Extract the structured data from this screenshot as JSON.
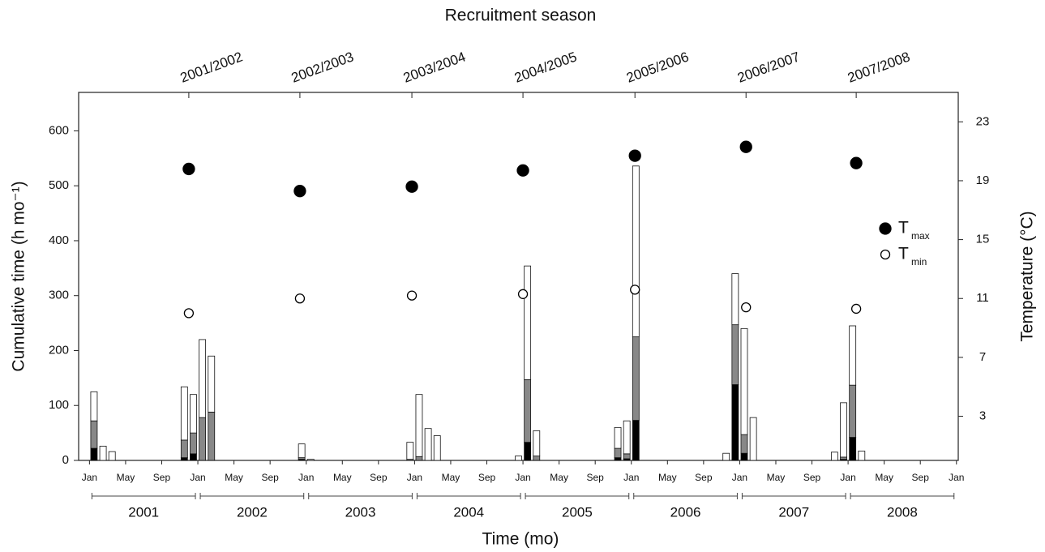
{
  "chart_data": {
    "type": "bar",
    "x2label": "Recruitment season",
    "xlabel": "Time (mo)",
    "ylabel": "Cumulative time (h mo⁻¹)",
    "y2label": "Temperature (°C)",
    "xlim": [
      -1.2,
      96.2
    ],
    "ylim": [
      0,
      670
    ],
    "y2lim": [
      0,
      25
    ],
    "yticks": [
      0,
      100,
      200,
      300,
      400,
      500,
      600
    ],
    "y2ticks": [
      3,
      7,
      11,
      15,
      19,
      23
    ],
    "xticks": [
      {
        "value": 0,
        "label": "Jan"
      },
      {
        "value": 4,
        "label": "May"
      },
      {
        "value": 8,
        "label": "Sep"
      },
      {
        "value": 12,
        "label": "Jan"
      },
      {
        "value": 16,
        "label": "May"
      },
      {
        "value": 20,
        "label": "Sep"
      },
      {
        "value": 24,
        "label": "Jan"
      },
      {
        "value": 28,
        "label": "May"
      },
      {
        "value": 32,
        "label": "Sep"
      },
      {
        "value": 36,
        "label": "Jan"
      },
      {
        "value": 40,
        "label": "May"
      },
      {
        "value": 44,
        "label": "Sep"
      },
      {
        "value": 48,
        "label": "Jan"
      },
      {
        "value": 52,
        "label": "May"
      },
      {
        "value": 56,
        "label": "Sep"
      },
      {
        "value": 60,
        "label": "Jan"
      },
      {
        "value": 64,
        "label": "May"
      },
      {
        "value": 68,
        "label": "Sep"
      },
      {
        "value": 72,
        "label": "Jan"
      },
      {
        "value": 76,
        "label": "May"
      },
      {
        "value": 80,
        "label": "Sep"
      },
      {
        "value": 84,
        "label": "Jan"
      },
      {
        "value": 88,
        "label": "May"
      },
      {
        "value": 92,
        "label": "Sep"
      },
      {
        "value": 96,
        "label": "Jan"
      }
    ],
    "year_labels": [
      "2001",
      "2002",
      "2003",
      "2004",
      "2005",
      "2006",
      "2007",
      "2008"
    ],
    "x2ticks": [
      {
        "value": 11,
        "label": "2001/2002"
      },
      {
        "value": 23.3,
        "label": "2002/2003"
      },
      {
        "value": 35.7,
        "label": "2003/2004"
      },
      {
        "value": 48,
        "label": "2004/2005"
      },
      {
        "value": 60.4,
        "label": "2005/2006"
      },
      {
        "value": 72.7,
        "label": "2006/2007"
      },
      {
        "value": 84.9,
        "label": "2007/2008"
      }
    ],
    "bars": {
      "x": [
        0.5,
        1.5,
        2.5,
        10.5,
        11.5,
        12.5,
        13.5,
        23.5,
        24.5,
        35.5,
        36.5,
        37.5,
        38.5,
        47.5,
        48.5,
        49.5,
        58.5,
        59.5,
        60.5,
        70.5,
        71.5,
        72.5,
        73.5,
        82.5,
        83.5,
        84.5,
        85.5
      ],
      "series": [
        {
          "color": "#000000",
          "values": [
            22,
            0,
            0,
            5,
            12,
            0,
            0,
            2,
            0,
            0,
            0,
            0,
            0,
            0,
            33,
            0,
            5,
            3,
            73,
            0,
            138,
            13,
            0,
            0,
            2,
            42,
            0
          ]
        },
        {
          "color": "#888888",
          "values": [
            50,
            0,
            0,
            32,
            38,
            78,
            88,
            3,
            0,
            2,
            7,
            0,
            0,
            0,
            114,
            8,
            17,
            9,
            152,
            0,
            109,
            34,
            0,
            0,
            4,
            95,
            0
          ]
        },
        {
          "color": "#ffffff",
          "values": [
            53,
            26,
            16,
            97,
            70,
            142,
            102,
            25,
            2,
            31,
            113,
            58,
            45,
            8,
            207,
            46,
            38,
            60,
            311,
            13,
            93,
            193,
            78,
            15,
            99,
            108,
            17
          ]
        }
      ]
    },
    "points": {
      "x": [
        11,
        23.3,
        35.7,
        48,
        60.4,
        72.7,
        84.9
      ],
      "series": [
        {
          "name": "T",
          "subscript": "max",
          "color": "#000000",
          "axis": "y2",
          "values": [
            19.8,
            18.3,
            18.6,
            19.7,
            20.7,
            21.3,
            20.2
          ]
        },
        {
          "name": "T",
          "subscript": "min",
          "color": "#ffffff",
          "axis": "y2",
          "values": [
            10.0,
            11.0,
            11.2,
            11.3,
            11.6,
            10.4,
            10.3
          ]
        }
      ]
    }
  }
}
